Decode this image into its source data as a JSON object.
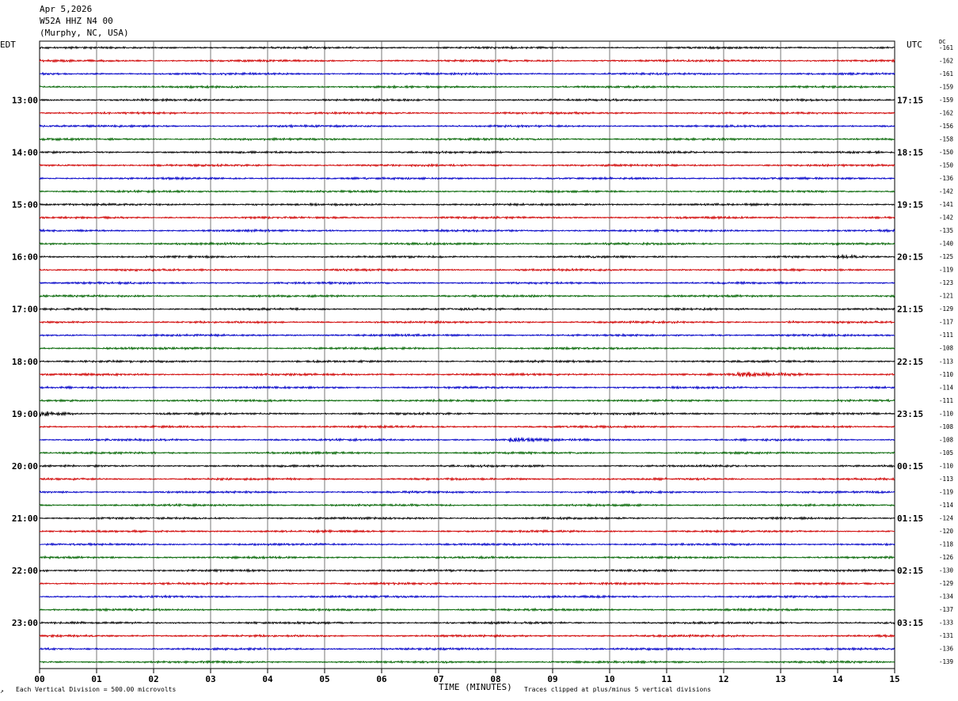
{
  "header": {
    "date": "Apr 5,2026",
    "station": "W52A HHZ N4 00",
    "location": "(Murphy, NC, USA)"
  },
  "labels": {
    "left_tz": "EDT",
    "right_tz": "UTC",
    "dc": "DC",
    "x_title": "TIME (MINUTES)",
    "scale_note": "Each Vertical Division =  500.00 microvolts",
    "clip_note": "Traces clipped at plus/minus 5 vertical divisions"
  },
  "chart_data": {
    "type": "line",
    "title": "W52A HHZ N4 00",
    "xlabel": "TIME (MINUTES)",
    "xlim": [
      0,
      15
    ],
    "x_ticks": [
      "00",
      "01",
      "02",
      "03",
      "04",
      "05",
      "06",
      "07",
      "08",
      "09",
      "10",
      "11",
      "12",
      "13",
      "14",
      "15"
    ],
    "trace_colors": [
      "#000000",
      "#d00000",
      "#0000c8",
      "#006400"
    ],
    "left_hour_labels": [
      "13:00",
      "14:00",
      "15:00",
      "16:00",
      "17:00",
      "18:00",
      "19:00",
      "20:00",
      "21:00",
      "22:00",
      "23:00"
    ],
    "right_hour_labels": [
      "17:15",
      "18:15",
      "19:15",
      "20:15",
      "21:15",
      "22:15",
      "23:15",
      "00:15",
      "01:15",
      "02:15",
      "03:15"
    ],
    "first_labeled_row": 4,
    "dc_offsets": [
      -161,
      -162,
      -161,
      -159,
      -159,
      -162,
      -156,
      -158,
      -150,
      -150,
      -136,
      -142,
      -141,
      -142,
      -135,
      -140,
      -125,
      -119,
      -123,
      -121,
      -129,
      -117,
      -111,
      -108,
      -113,
      -110,
      -114,
      -111,
      -110,
      -108,
      -108,
      -105,
      -110,
      -113,
      -119,
      -114,
      -124,
      -120,
      -118,
      -126,
      -130,
      -129,
      -134,
      -137,
      -133,
      -131,
      -136,
      -139
    ],
    "events": [
      {
        "row": 16,
        "start_min": 14.0,
        "end_min": 14.6,
        "level": 2.5
      },
      {
        "row": 21,
        "start_min": 13.1,
        "end_min": 13.3,
        "level": 2.5
      },
      {
        "row": 22,
        "start_min": 11.8,
        "end_min": 12.1,
        "level": 2.0
      },
      {
        "row": 25,
        "start_min": 12.2,
        "end_min": 13.9,
        "level": 3.0
      },
      {
        "row": 28,
        "start_min": 0.0,
        "end_min": 0.75,
        "level": 3.5
      },
      {
        "row": 30,
        "start_min": 8.25,
        "end_min": 9.0,
        "level": 4.5
      }
    ]
  }
}
